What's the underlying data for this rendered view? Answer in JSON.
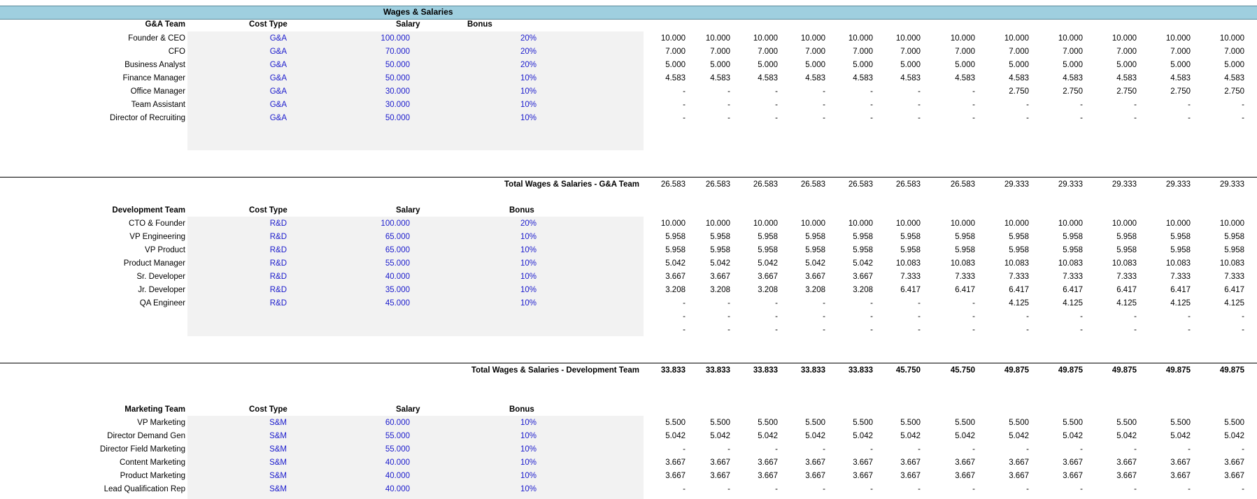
{
  "title": "Wages & Salaries",
  "header_labels": {
    "cost_type": "Cost Type",
    "salary": "Salary",
    "bonus": "Bonus"
  },
  "sections": [
    {
      "team": "G&A Team",
      "total_label": "Total Wages & Salaries -  G&A Team",
      "rows": [
        {
          "name": "Founder & CEO",
          "type": "G&A",
          "salary": "100.000",
          "bonus": "20%",
          "values": [
            "10.000",
            "10.000",
            "10.000",
            "10.000",
            "10.000",
            "10.000",
            "10.000",
            "10.000",
            "10.000",
            "10.000",
            "10.000",
            "10.000"
          ]
        },
        {
          "name": "CFO",
          "type": "G&A",
          "salary": "70.000",
          "bonus": "20%",
          "values": [
            "7.000",
            "7.000",
            "7.000",
            "7.000",
            "7.000",
            "7.000",
            "7.000",
            "7.000",
            "7.000",
            "7.000",
            "7.000",
            "7.000"
          ]
        },
        {
          "name": "Business Analyst",
          "type": "G&A",
          "salary": "50.000",
          "bonus": "20%",
          "values": [
            "5.000",
            "5.000",
            "5.000",
            "5.000",
            "5.000",
            "5.000",
            "5.000",
            "5.000",
            "5.000",
            "5.000",
            "5.000",
            "5.000"
          ]
        },
        {
          "name": "Finance Manager",
          "type": "G&A",
          "salary": "50.000",
          "bonus": "10%",
          "values": [
            "4.583",
            "4.583",
            "4.583",
            "4.583",
            "4.583",
            "4.583",
            "4.583",
            "4.583",
            "4.583",
            "4.583",
            "4.583",
            "4.583"
          ]
        },
        {
          "name": "Office Manager",
          "type": "G&A",
          "salary": "30.000",
          "bonus": "10%",
          "values": [
            "-",
            "-",
            "-",
            "-",
            "-",
            "-",
            "-",
            "2.750",
            "2.750",
            "2.750",
            "2.750",
            "2.750"
          ]
        },
        {
          "name": "Team Assistant",
          "type": "G&A",
          "salary": "30.000",
          "bonus": "10%",
          "values": [
            "-",
            "-",
            "-",
            "-",
            "-",
            "-",
            "-",
            "-",
            "-",
            "-",
            "-",
            "-"
          ]
        },
        {
          "name": "Director of Recruiting",
          "type": "G&A",
          "salary": "50.000",
          "bonus": "10%",
          "values": [
            "-",
            "-",
            "-",
            "-",
            "-",
            "-",
            "-",
            "-",
            "-",
            "-",
            "-",
            "-"
          ]
        }
      ],
      "extra_rows": [],
      "totals": [
        "26.583",
        "26.583",
        "26.583",
        "26.583",
        "26.583",
        "26.583",
        "26.583",
        "29.333",
        "29.333",
        "29.333",
        "29.333",
        "29.333"
      ]
    },
    {
      "team": "Development Team",
      "total_label": "Total Wages & Salaries -  Development Team",
      "rows": [
        {
          "name": "CTO & Founder",
          "type": "R&D",
          "salary": "100.000",
          "bonus": "20%",
          "values": [
            "10.000",
            "10.000",
            "10.000",
            "10.000",
            "10.000",
            "10.000",
            "10.000",
            "10.000",
            "10.000",
            "10.000",
            "10.000",
            "10.000"
          ]
        },
        {
          "name": "VP Engineering",
          "type": "R&D",
          "salary": "65.000",
          "bonus": "10%",
          "values": [
            "5.958",
            "5.958",
            "5.958",
            "5.958",
            "5.958",
            "5.958",
            "5.958",
            "5.958",
            "5.958",
            "5.958",
            "5.958",
            "5.958"
          ]
        },
        {
          "name": "VP Product",
          "type": "R&D",
          "salary": "65.000",
          "bonus": "10%",
          "values": [
            "5.958",
            "5.958",
            "5.958",
            "5.958",
            "5.958",
            "5.958",
            "5.958",
            "5.958",
            "5.958",
            "5.958",
            "5.958",
            "5.958"
          ]
        },
        {
          "name": "Product Manager",
          "type": "R&D",
          "salary": "55.000",
          "bonus": "10%",
          "values": [
            "5.042",
            "5.042",
            "5.042",
            "5.042",
            "5.042",
            "10.083",
            "10.083",
            "10.083",
            "10.083",
            "10.083",
            "10.083",
            "10.083"
          ]
        },
        {
          "name": "Sr. Developer",
          "type": "R&D",
          "salary": "40.000",
          "bonus": "10%",
          "values": [
            "3.667",
            "3.667",
            "3.667",
            "3.667",
            "3.667",
            "7.333",
            "7.333",
            "7.333",
            "7.333",
            "7.333",
            "7.333",
            "7.333"
          ]
        },
        {
          "name": "Jr. Developer",
          "type": "R&D",
          "salary": "35.000",
          "bonus": "10%",
          "values": [
            "3.208",
            "3.208",
            "3.208",
            "3.208",
            "3.208",
            "6.417",
            "6.417",
            "6.417",
            "6.417",
            "6.417",
            "6.417",
            "6.417"
          ]
        },
        {
          "name": "QA Engineer",
          "type": "R&D",
          "salary": "45.000",
          "bonus": "10%",
          "values": [
            "-",
            "-",
            "-",
            "-",
            "-",
            "-",
            "-",
            "4.125",
            "4.125",
            "4.125",
            "4.125",
            "4.125"
          ]
        }
      ],
      "extra_rows": [
        [
          "-",
          "-",
          "-",
          "-",
          "-",
          "-",
          "-",
          "-",
          "-",
          "-",
          "-",
          "-"
        ],
        [
          "-",
          "-",
          "-",
          "-",
          "-",
          "-",
          "-",
          "-",
          "-",
          "-",
          "-",
          "-"
        ]
      ],
      "totals": [
        "33.833",
        "33.833",
        "33.833",
        "33.833",
        "33.833",
        "45.750",
        "45.750",
        "49.875",
        "49.875",
        "49.875",
        "49.875",
        "49.875"
      ]
    },
    {
      "team": "Marketing Team",
      "total_label": "",
      "rows": [
        {
          "name": "VP Marketing",
          "type": "S&M",
          "salary": "60.000",
          "bonus": "10%",
          "values": [
            "5.500",
            "5.500",
            "5.500",
            "5.500",
            "5.500",
            "5.500",
            "5.500",
            "5.500",
            "5.500",
            "5.500",
            "5.500",
            "5.500"
          ]
        },
        {
          "name": "Director Demand Gen",
          "type": "S&M",
          "salary": "55.000",
          "bonus": "10%",
          "values": [
            "5.042",
            "5.042",
            "5.042",
            "5.042",
            "5.042",
            "5.042",
            "5.042",
            "5.042",
            "5.042",
            "5.042",
            "5.042",
            "5.042"
          ]
        },
        {
          "name": "Director  Field Marketing",
          "type": "S&M",
          "salary": "55.000",
          "bonus": "10%",
          "values": [
            "-",
            "-",
            "-",
            "-",
            "-",
            "-",
            "-",
            "-",
            "-",
            "-",
            "-",
            "-"
          ]
        },
        {
          "name": "Content Marketing",
          "type": "S&M",
          "salary": "40.000",
          "bonus": "10%",
          "values": [
            "3.667",
            "3.667",
            "3.667",
            "3.667",
            "3.667",
            "3.667",
            "3.667",
            "3.667",
            "3.667",
            "3.667",
            "3.667",
            "3.667"
          ]
        },
        {
          "name": "Product Marketing",
          "type": "S&M",
          "salary": "40.000",
          "bonus": "10%",
          "values": [
            "3.667",
            "3.667",
            "3.667",
            "3.667",
            "3.667",
            "3.667",
            "3.667",
            "3.667",
            "3.667",
            "3.667",
            "3.667",
            "3.667"
          ]
        },
        {
          "name": "Lead Qualification  Rep",
          "type": "S&M",
          "salary": "40.000",
          "bonus": "10%",
          "values": [
            "-",
            "-",
            "-",
            "-",
            "-",
            "-",
            "-",
            "-",
            "-",
            "-",
            "-",
            "-"
          ]
        }
      ],
      "extra_rows": [],
      "totals": []
    }
  ]
}
